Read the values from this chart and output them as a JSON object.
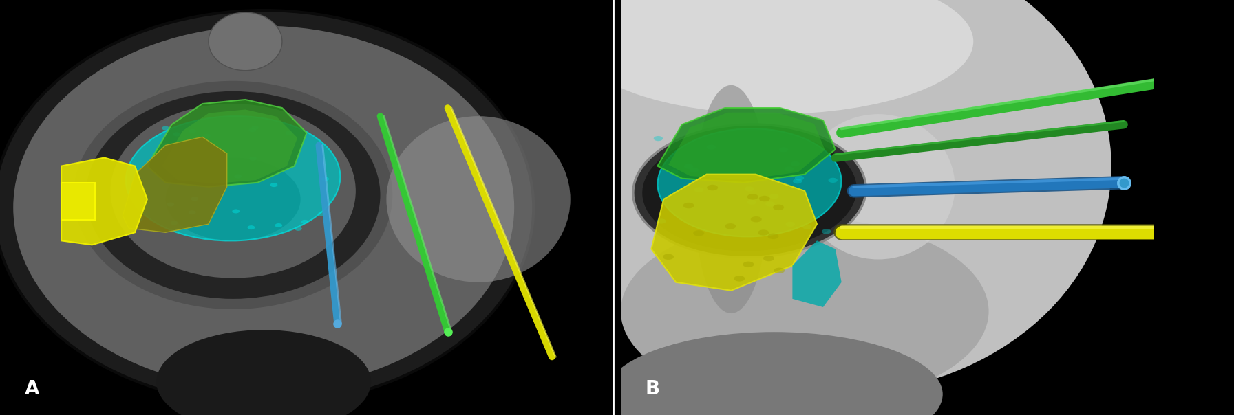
{
  "figure_width": 17.93,
  "figure_height": 6.04,
  "dpi": 100,
  "panel_A_label": "A",
  "panel_B_label": "B",
  "label_color": "white",
  "label_fontsize": 20,
  "label_fontweight": "bold",
  "bg_color": "#000000",
  "divider_color": "white",
  "divider_linewidth": 2.0,
  "panelA_bg_outer": "#1a1a1a",
  "panelA_bg_mid": "#484848",
  "panelA_bg_inner": "#2a2a2a",
  "panelA_nose_color": "#888888",
  "panelA_cyan_color": "#00c8c8",
  "panelA_green_color": "#2a8a2a",
  "panelA_olive_color": "#8a8a10",
  "panelA_yellow_color": "#d4d400",
  "panelA_blue_rod_color": "#4499cc",
  "panelA_green_rod_color": "#33cc33",
  "panelA_yellow_rod_color": "#dddd00",
  "panelB_skull_light": "#b8b8b8",
  "panelB_skull_dark": "#888888",
  "panelB_orbit_dark": "#222222",
  "panelB_green_color": "#1a9a1a",
  "panelB_cyan_color": "#00aaaa",
  "panelB_yellow_color": "#c8c800",
  "panelB_green_rod1": "#33bb33",
  "panelB_green_rod2": "#228822",
  "panelB_blue_rod": "#2277bb",
  "panelB_yellow_rod": "#dddd00",
  "panelB_black_bg": "#000000"
}
